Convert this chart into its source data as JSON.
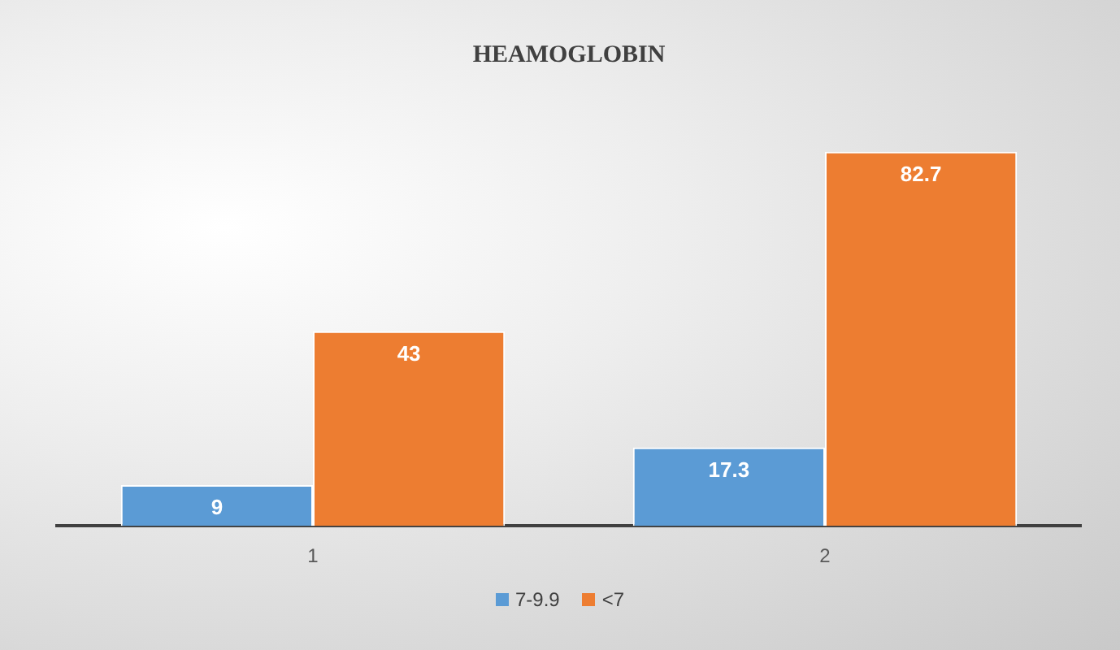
{
  "chart_data": {
    "type": "bar",
    "title": "HEAMOGLOBIN",
    "categories": [
      "1",
      "2"
    ],
    "series": [
      {
        "name": "7-9.9",
        "color": "#5b9bd5",
        "values": [
          9,
          17.3
        ]
      },
      {
        "name": "<7",
        "color": "#ed7d31",
        "values": [
          43,
          82.7
        ]
      }
    ],
    "data_labels": true,
    "legend": "bottom",
    "grid": false
  }
}
